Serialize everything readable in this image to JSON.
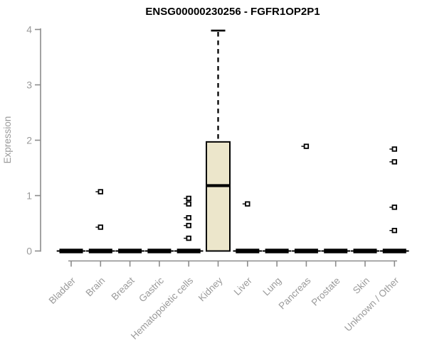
{
  "chart_data": {
    "type": "boxplot",
    "title": "ENSG00000230256 - FGFR1OP2P1",
    "xlabel": "",
    "ylabel": "Expression",
    "ylim": [
      0,
      4
    ],
    "yticks": [
      0,
      1,
      2,
      3,
      4
    ],
    "grid": false,
    "legend": "none",
    "categories": [
      "Bladder",
      "Brain",
      "Breast",
      "Gastric",
      "Hematopoietic cells",
      "Kidney",
      "Liver",
      "Lung",
      "Pancreas",
      "Prostate",
      "Skin",
      "Unknown / Other"
    ],
    "series": [
      {
        "category": "Bladder",
        "whisker_low": 0,
        "q1": 0,
        "median": 0,
        "q3": 0,
        "whisker_high": 0,
        "outliers": []
      },
      {
        "category": "Brain",
        "whisker_low": 0,
        "q1": 0,
        "median": 0,
        "q3": 0,
        "whisker_high": 0,
        "outliers": [
          1.07,
          0.43
        ]
      },
      {
        "category": "Breast",
        "whisker_low": 0,
        "q1": 0,
        "median": 0,
        "q3": 0,
        "whisker_high": 0,
        "outliers": []
      },
      {
        "category": "Gastric",
        "whisker_low": 0,
        "q1": 0,
        "median": 0,
        "q3": 0,
        "whisker_high": 0,
        "outliers": []
      },
      {
        "category": "Hematopoietic cells",
        "whisker_low": 0,
        "q1": 0,
        "median": 0,
        "q3": 0,
        "whisker_high": 0,
        "outliers": [
          0.95,
          0.85,
          0.6,
          0.46,
          0.23
        ]
      },
      {
        "category": "Kidney",
        "whisker_low": 0,
        "q1": 0,
        "median": 1.18,
        "q3": 1.97,
        "whisker_high": 3.98,
        "outliers": []
      },
      {
        "category": "Liver",
        "whisker_low": 0,
        "q1": 0,
        "median": 0,
        "q3": 0,
        "whisker_high": 0,
        "outliers": [
          0.85
        ]
      },
      {
        "category": "Lung",
        "whisker_low": 0,
        "q1": 0,
        "median": 0,
        "q3": 0,
        "whisker_high": 0,
        "outliers": []
      },
      {
        "category": "Pancreas",
        "whisker_low": 0,
        "q1": 0,
        "median": 0,
        "q3": 0,
        "whisker_high": 0,
        "outliers": [
          1.89
        ]
      },
      {
        "category": "Prostate",
        "whisker_low": 0,
        "q1": 0,
        "median": 0,
        "q3": 0,
        "whisker_high": 0,
        "outliers": []
      },
      {
        "category": "Skin",
        "whisker_low": 0,
        "q1": 0,
        "median": 0,
        "q3": 0,
        "whisker_high": 0,
        "outliers": []
      },
      {
        "category": "Unknown / Other",
        "whisker_low": 0,
        "q1": 0,
        "median": 0,
        "q3": 0,
        "whisker_high": 0,
        "outliers": [
          1.84,
          1.61,
          0.79,
          0.37
        ]
      }
    ],
    "colors": {
      "box_fill": "#ECE6CB",
      "box_stroke": "#000000",
      "median": "#000000",
      "outlier_stroke": "#000000",
      "axis": "#8c8c8c",
      "tick_label": "#9a9a9a",
      "title": "#000000",
      "background": "#ffffff"
    }
  }
}
